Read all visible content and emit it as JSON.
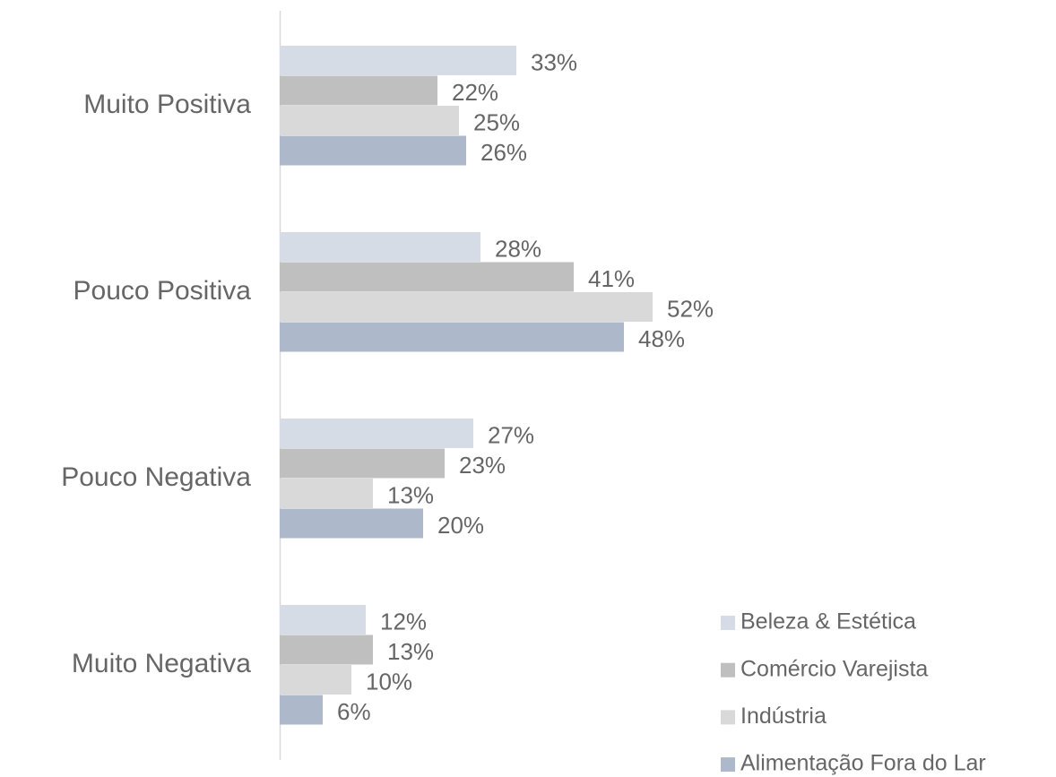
{
  "chart_data": {
    "type": "hbar",
    "categories": [
      "Muito Positiva",
      "Pouco Positiva",
      "Pouco Negativa",
      "Muito Negativa"
    ],
    "series": [
      {
        "name": "Beleza & Estética",
        "color": "#d6dce5",
        "values": [
          33,
          28,
          27,
          12
        ],
        "value_labels": [
          "33%",
          "28%",
          "27%",
          "12%"
        ]
      },
      {
        "name": "Comércio Varejista",
        "color": "#bfbfbf",
        "values": [
          22,
          41,
          23,
          13
        ],
        "value_labels": [
          "22%",
          "41%",
          "23%",
          "13%"
        ]
      },
      {
        "name": "Indústria",
        "color": "#d9d9d9",
        "values": [
          25,
          52,
          13,
          10
        ],
        "value_labels": [
          "25%",
          "52%",
          "13%",
          "10%"
        ]
      },
      {
        "name": "Alimentação Fora do Lar",
        "color": "#adb9ca",
        "values": [
          26,
          48,
          20,
          6
        ],
        "value_labels": [
          "26%",
          "48%",
          "20%",
          "6%"
        ]
      }
    ],
    "xlim": [
      0,
      100
    ],
    "legend": "bottom-right"
  }
}
